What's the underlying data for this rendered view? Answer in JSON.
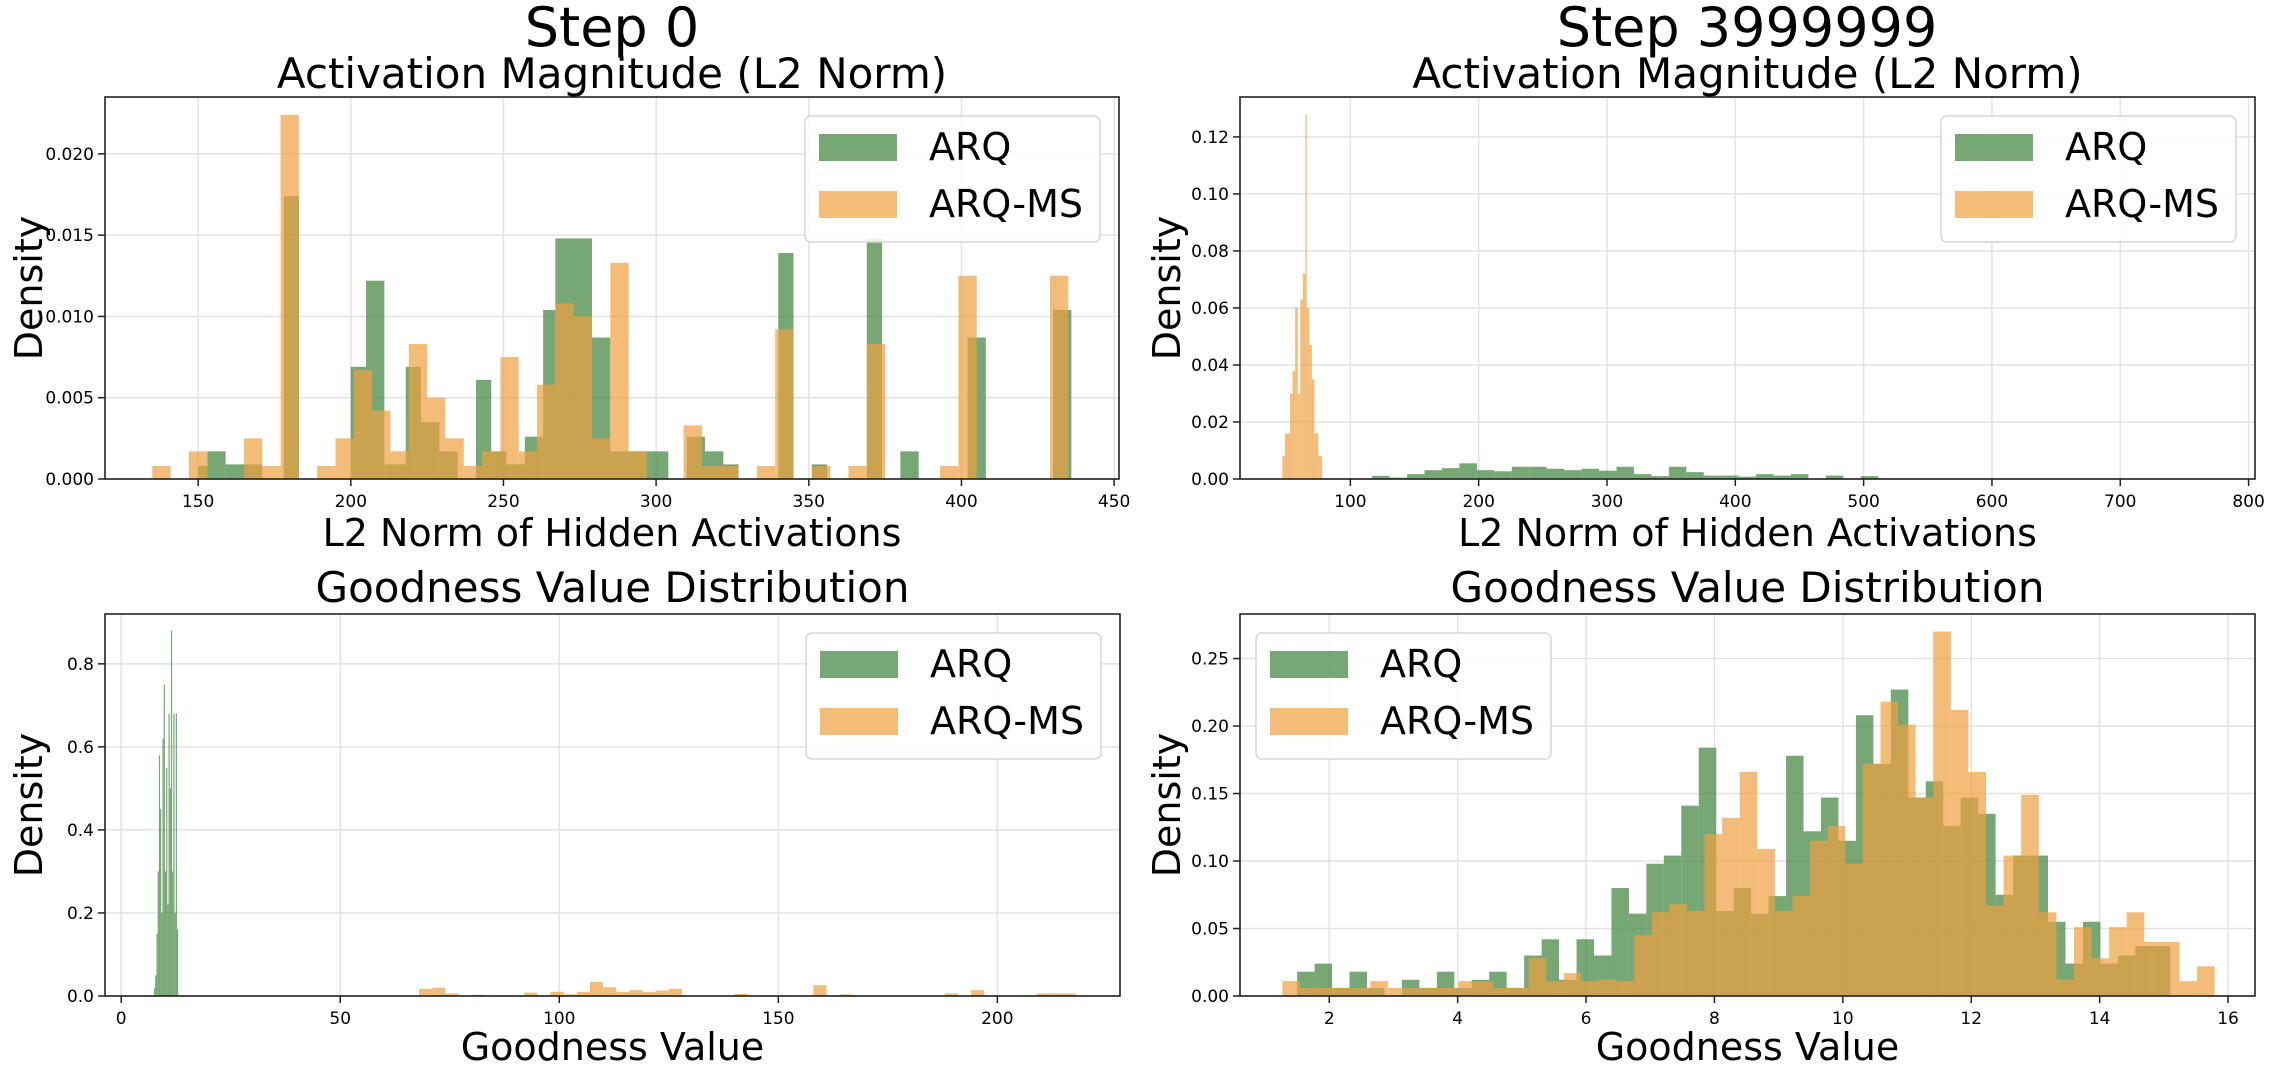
{
  "colors": {
    "ARQ": "#4a8a45",
    "ARQ-MS": "#f0a040"
  },
  "column_titles": [
    "Step 0",
    "Step 3999999"
  ],
  "chart_data": [
    {
      "type": "histogram",
      "title": "Activation Magnitude (L2 Norm)",
      "xlabel": "L2 Norm of Hidden Activations",
      "ylabel": "Density",
      "xlim": [
        119.5,
        451.6
      ],
      "ylim": [
        0,
        0.0235
      ],
      "xticks": [
        150,
        200,
        250,
        300,
        350,
        400,
        450
      ],
      "xtick_labels": [
        "150",
        "200",
        "250",
        "300",
        "350",
        "400",
        "450"
      ],
      "yticks": [
        0,
        0.005,
        0.01,
        0.015,
        0.02
      ],
      "ytick_labels": [
        "0.000",
        "0.005",
        "0.010",
        "0.015",
        "0.020"
      ],
      "grid": true,
      "legend": "upper-right",
      "series": [
        {
          "name": "ARQ",
          "bins": [
            [
              150,
              153,
              0.0008
            ],
            [
              153,
              159,
              0.0017
            ],
            [
              159,
              171,
              0.0009
            ],
            [
              178,
              183,
              0.0174
            ],
            [
              200,
              205,
              0.0069
            ],
            [
              205,
              211,
              0.0122
            ],
            [
              211,
              218,
              0.0009
            ],
            [
              218,
              223,
              0.0069
            ],
            [
              223,
              229,
              0.0035
            ],
            [
              229,
              235,
              0.0017
            ],
            [
              241,
              246,
              0.0061
            ],
            [
              246,
              251,
              0.0017
            ],
            [
              251,
              257,
              0.0009
            ],
            [
              257,
              263,
              0.0026
            ],
            [
              263,
              267,
              0.0104
            ],
            [
              267,
              279,
              0.0148
            ],
            [
              279,
              285,
              0.0087
            ],
            [
              285,
              298,
              0.0017
            ],
            [
              298,
              304,
              0.0017
            ],
            [
              310,
              316,
              0.0026
            ],
            [
              316,
              322,
              0.0017
            ],
            [
              322,
              327,
              0.0009
            ],
            [
              340,
              345,
              0.0139
            ],
            [
              351,
              356,
              0.0009
            ],
            [
              369,
              374,
              0.0148
            ],
            [
              380,
              386,
              0.0017
            ],
            [
              402,
              408,
              0.0087
            ],
            [
              430,
              436,
              0.0104
            ]
          ]
        },
        {
          "name": "ARQ-MS",
          "bins": [
            [
              135,
              141,
              0.0008
            ],
            [
              147,
              153,
              0.0017
            ],
            [
              165,
              171,
              0.0025
            ],
            [
              171,
              177,
              0.0008
            ],
            [
              177,
              183,
              0.0224
            ],
            [
              189,
              195,
              0.0008
            ],
            [
              195,
              201,
              0.0025
            ],
            [
              201,
              207,
              0.0067
            ],
            [
              207,
              213,
              0.0042
            ],
            [
              213,
              219,
              0.0017
            ],
            [
              219,
              225,
              0.0083
            ],
            [
              225,
              231,
              0.005
            ],
            [
              231,
              237,
              0.0025
            ],
            [
              237,
              243,
              0.0008
            ],
            [
              243,
              249,
              0.0017
            ],
            [
              249,
              255,
              0.0075
            ],
            [
              255,
              261,
              0.0017
            ],
            [
              261,
              267,
              0.0058
            ],
            [
              267,
              273,
              0.0108
            ],
            [
              273,
              279,
              0.01
            ],
            [
              279,
              285,
              0.0025
            ],
            [
              285,
              291,
              0.0133
            ],
            [
              291,
              297,
              0.0017
            ],
            [
              309,
              315,
              0.0033
            ],
            [
              315,
              321,
              0.0008
            ],
            [
              321,
              327,
              0.0008
            ],
            [
              333,
              339,
              0.0008
            ],
            [
              339,
              345,
              0.0092
            ],
            [
              351,
              357,
              0.0008
            ],
            [
              363,
              369,
              0.0008
            ],
            [
              369,
              375,
              0.0083
            ],
            [
              393,
              399,
              0.0008
            ],
            [
              399,
              405,
              0.0125
            ],
            [
              429,
              435,
              0.0125
            ]
          ]
        }
      ]
    },
    {
      "type": "histogram",
      "title": "Activation Magnitude (L2 Norm)",
      "xlabel": "L2 Norm of Hidden Activations",
      "ylabel": "Density",
      "xlim": [
        14,
        805
      ],
      "ylim": [
        0,
        0.134
      ],
      "xticks": [
        100,
        200,
        300,
        400,
        500,
        600,
        700,
        800
      ],
      "xtick_labels": [
        "100",
        "200",
        "300",
        "400",
        "500",
        "600",
        "700",
        "800"
      ],
      "yticks": [
        0,
        0.02,
        0.04,
        0.06,
        0.08,
        0.1,
        0.12
      ],
      "ytick_labels": [
        "0.00",
        "0.02",
        "0.04",
        "0.06",
        "0.08",
        "0.10",
        "0.12"
      ],
      "grid": true,
      "legend": "upper-right",
      "series": [
        {
          "name": "ARQ",
          "start": 117,
          "width": 13.6,
          "values": [
            0.0011,
            0.0005,
            0.0017,
            0.0031,
            0.0038,
            0.0055,
            0.0031,
            0.0027,
            0.0043,
            0.0043,
            0.0036,
            0.0031,
            0.0036,
            0.0029,
            0.0043,
            0.0017,
            0.001,
            0.0043,
            0.0024,
            0.0012,
            0.0012,
            0.0008,
            0.0017,
            0.0012,
            0.0017,
            0,
            0.0012,
            0,
            0.001
          ]
        },
        {
          "name": "ARQ-MS",
          "bins": [
            [
              47,
              49,
              0.008
            ],
            [
              49,
              51,
              0.016
            ],
            [
              51,
              53,
              0.016
            ],
            [
              53,
              55,
              0.03
            ],
            [
              55,
              57,
              0.038
            ],
            [
              57,
              59,
              0.06
            ],
            [
              59,
              61,
              0.03
            ],
            [
              61,
              63,
              0.063
            ],
            [
              63,
              65,
              0.072
            ],
            [
              65,
              66,
              0.128
            ],
            [
              66,
              68,
              0.06
            ],
            [
              68,
              70,
              0.047
            ],
            [
              70,
              72,
              0.035
            ],
            [
              72,
              75,
              0.016
            ],
            [
              75,
              78,
              0.008
            ]
          ]
        }
      ]
    },
    {
      "type": "histogram",
      "title": "Goodness Value Distribution",
      "xlabel": "Goodness Value",
      "ylabel": "Density",
      "xlim": [
        -3.7,
        228
      ],
      "ylim": [
        0,
        0.92
      ],
      "xticks": [
        0,
        50,
        100,
        150,
        200
      ],
      "xtick_labels": [
        "0",
        "50",
        "100",
        "150",
        "200"
      ],
      "yticks": [
        0,
        0.2,
        0.4,
        0.6,
        0.8
      ],
      "ytick_labels": [
        "0.0",
        "0.2",
        "0.4",
        "0.6",
        "0.8"
      ],
      "grid": true,
      "legend": "upper-right",
      "series": [
        {
          "name": "ARQ",
          "start": 7.5,
          "width": 0.275,
          "values": [
            0.02,
            0.05,
            0.15,
            0.3,
            0.58,
            0.45,
            0.2,
            0.62,
            0.75,
            0.3,
            0.55,
            0.22,
            0.68,
            0.5,
            0.88,
            0.3,
            0.68,
            0.2,
            0.68,
            0.16
          ]
        },
        {
          "name": "ARQ-MS",
          "start": 68,
          "width": 3,
          "values": [
            0.017,
            0.02,
            0.006,
            0.001,
            0.003,
            0.002,
            0.002,
            0,
            0.008,
            0.002,
            0.01,
            0.004,
            0.01,
            0.034,
            0.021,
            0.01,
            0.014,
            0.01,
            0.013,
            0.017,
            0.001,
            0.001,
            0,
            0.001,
            0.005,
            0,
            0.002,
            0.002,
            0.001,
            0,
            0.026,
            0,
            0.004,
            0,
            0,
            0,
            0,
            0,
            0,
            0,
            0.006,
            0,
            0.014,
            0,
            0,
            0,
            0,
            0.006,
            0.006,
            0.006
          ]
        }
      ]
    },
    {
      "type": "histogram",
      "title": "Goodness Value Distribution",
      "xlabel": "Goodness Value",
      "ylabel": "Density",
      "xlim": [
        0.61,
        16.42
      ],
      "ylim": [
        0,
        0.283
      ],
      "xticks": [
        2,
        4,
        6,
        8,
        10,
        12,
        14,
        16
      ],
      "xtick_labels": [
        "2",
        "4",
        "6",
        "8",
        "10",
        "12",
        "14",
        "16"
      ],
      "yticks": [
        0,
        0.05,
        0.1,
        0.15,
        0.2,
        0.25
      ],
      "ytick_labels": [
        "0.00",
        "0.05",
        "0.10",
        "0.15",
        "0.20",
        "0.25"
      ],
      "grid": true,
      "legend": "upper-left",
      "series": [
        {
          "name": "ARQ",
          "start": 1.5,
          "width": 0.272,
          "values": [
            0.018,
            0.024,
            0.006,
            0.018,
            0.006,
            0,
            0.012,
            0.006,
            0.018,
            0.006,
            0.012,
            0.018,
            0.006,
            0.03,
            0.042,
            0.012,
            0.042,
            0.03,
            0.08,
            0.061,
            0.098,
            0.104,
            0.141,
            0.184,
            0.063,
            0.08,
            0.061,
            0.074,
            0.178,
            0.122,
            0.147,
            0.115,
            0.208,
            0.172,
            0.227,
            0.147,
            0.159,
            0.126,
            0.147,
            0.135,
            0.075,
            0.104,
            0.104,
            0.055,
            0.024,
            0.055,
            0.024,
            0.03,
            0.037,
            0.037
          ]
        },
        {
          "name": "ARQ-MS",
          "start": 1.27,
          "width": 0.274,
          "values": [
            0.011,
            0.006,
            0.006,
            0.006,
            0.006,
            0.011,
            0.006,
            0.006,
            0.006,
            0.006,
            0.011,
            0.011,
            0.006,
            0.006,
            0.028,
            0.011,
            0.017,
            0.011,
            0.012,
            0.011,
            0.045,
            0.062,
            0.068,
            0.063,
            0.12,
            0.132,
            0.166,
            0.109,
            0.063,
            0.074,
            0.115,
            0.126,
            0.098,
            0.172,
            0.218,
            0.201,
            0.147,
            0.27,
            0.212,
            0.166,
            0.067,
            0.104,
            0.149,
            0.062,
            0.012,
            0.051,
            0.028,
            0.051,
            0.062,
            0.04,
            0.04,
            0.011,
            0.022
          ]
        }
      ]
    }
  ]
}
